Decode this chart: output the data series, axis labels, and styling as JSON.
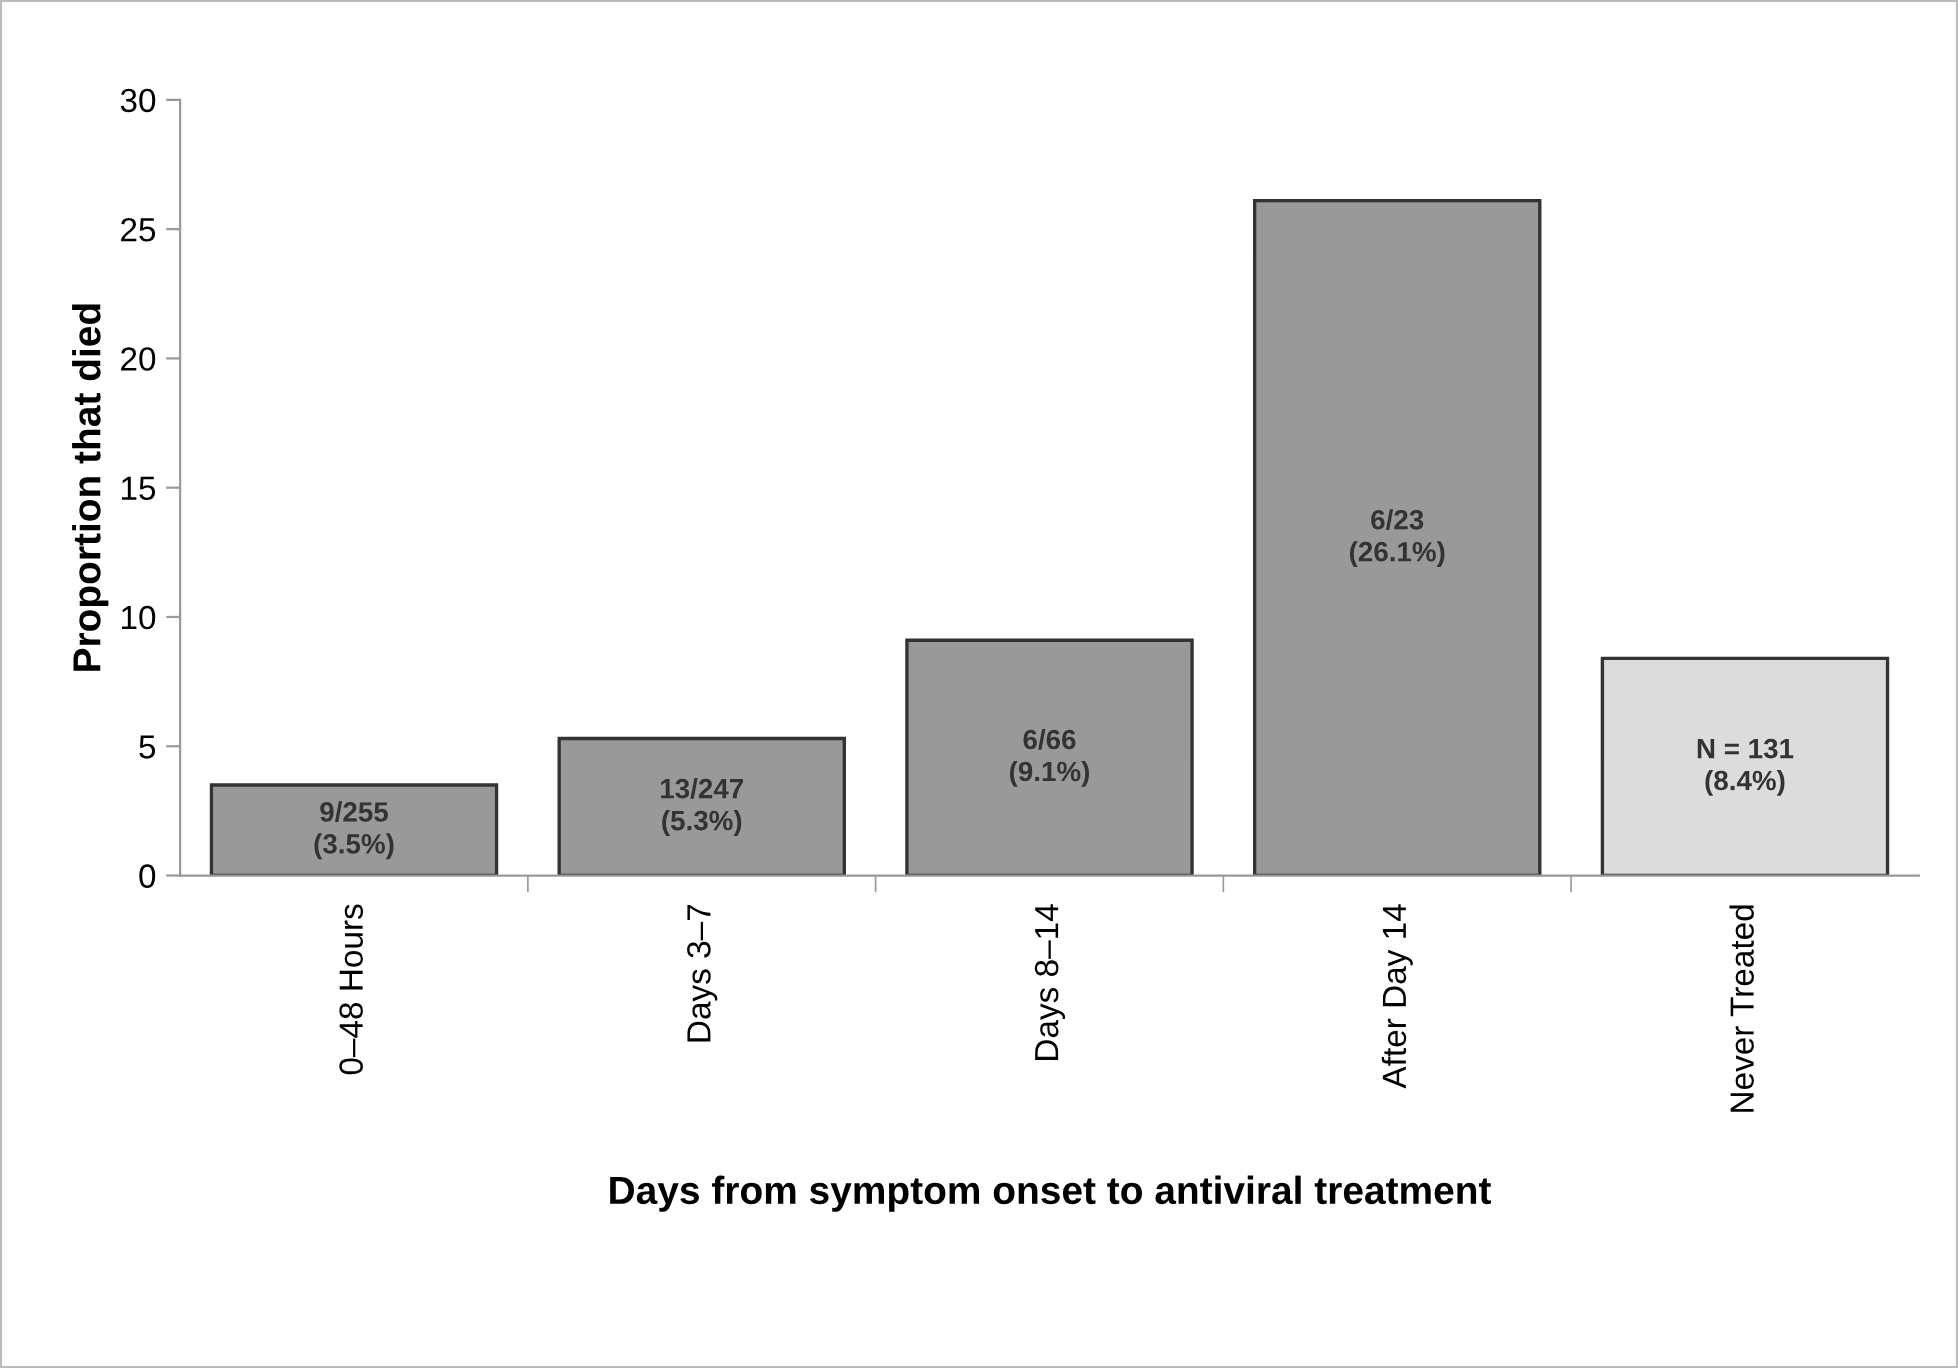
{
  "chart_data": {
    "type": "bar",
    "xlabel": "Days from symptom onset to antiviral treatment",
    "ylabel": "Proportion that died",
    "categories": [
      "0–48 Hours",
      "Days 3–7",
      "Days 8–14",
      "After Day 14",
      "Never Treated"
    ],
    "values": [
      3.5,
      5.3,
      9.1,
      26.1,
      8.4
    ],
    "colors": [
      "#999999",
      "#999999",
      "#999999",
      "#999999",
      "#dcdcdc"
    ],
    "value_labels": [
      "9/255\n(3.5%)",
      "13/247\n(5.3%)",
      "6/66\n(9.1%)",
      "6/23\n(26.1%)",
      "N = 131\n(8.4%)"
    ],
    "ylim": [
      0,
      30
    ],
    "yticks": [
      0,
      5,
      10,
      15,
      20,
      25,
      30
    ],
    "grid": false,
    "legend": false
  }
}
